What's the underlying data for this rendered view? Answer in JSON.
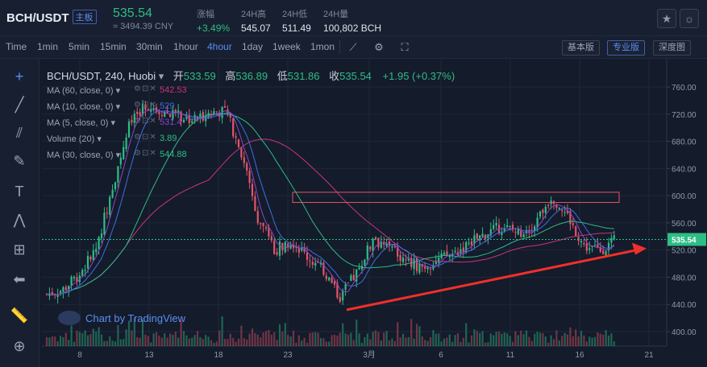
{
  "header": {
    "pair": "BCH/USDT",
    "board": "主板",
    "last_price": "535.54",
    "cny_price": "≈ 3494.39 CNY",
    "stats": [
      {
        "label": "涨幅",
        "value": "+3.49%",
        "up": true
      },
      {
        "label": "24H高",
        "value": "545.07",
        "up": false
      },
      {
        "label": "24H低",
        "value": "511.49",
        "up": false
      },
      {
        "label": "24H量",
        "value": "100,802 BCH",
        "up": false
      }
    ]
  },
  "toolbar": {
    "timeframes": [
      "Time",
      "1min",
      "5min",
      "15min",
      "30min",
      "1hour",
      "4hour",
      "1day",
      "1week",
      "1mon"
    ],
    "active_timeframe": "4hour",
    "modes": [
      "基本版",
      "专业版",
      "深度图"
    ],
    "active_mode": "专业版"
  },
  "legend": {
    "title": "BCH/USDT, 240, Huobi",
    "open_label": "开",
    "open": "533.59",
    "high_label": "高",
    "high": "536.89",
    "low_label": "低",
    "low": "531.86",
    "close_label": "收",
    "close": "535.54",
    "change": "+1.95 (+0.37%)"
  },
  "indicators": [
    {
      "label": "MA (60, close, 0)",
      "value": "542.53",
      "color": "#c9357d"
    },
    {
      "label": "MA (10, close, 0)",
      "value": "529",
      "color": "#3f6fe0"
    },
    {
      "label": "MA (5, close, 0)",
      "value": "531.4",
      "color": "#8e44c9"
    },
    {
      "label": "Volume (20)",
      "value": "3.89",
      "color": "#2ebd85"
    },
    {
      "label": "MA (30, close, 0)",
      "value": "544.88",
      "color": "#2ebd85"
    }
  ],
  "watermark": "Chart by TradingView",
  "colors": {
    "up": "#2ebd85",
    "down": "#e05767",
    "accent": "#5b8ef0",
    "background": "#141b2b"
  },
  "chart_data": {
    "type": "candlestick",
    "x_tick_labels": [
      "8",
      "13",
      "18",
      "23",
      "3月",
      "6",
      "11",
      "16",
      "21"
    ],
    "y_tick_labels": [
      "760.00",
      "720.00",
      "680.00",
      "640.00",
      "600.00",
      "560.00",
      "520.00",
      "480.00",
      "440.00",
      "400.00"
    ],
    "ylim": [
      390,
      775
    ],
    "current_price_label": "535.54",
    "price_path_anchors": [
      {
        "x": "8",
        "y": 455
      },
      {
        "x": "10",
        "y": 462
      },
      {
        "x": "12",
        "y": 485
      },
      {
        "x": "13",
        "y": 520
      },
      {
        "x": "14",
        "y": 610
      },
      {
        "x": "15",
        "y": 700
      },
      {
        "x": "16",
        "y": 735
      },
      {
        "x": "17",
        "y": 725
      },
      {
        "x": "18",
        "y": 718
      },
      {
        "x": "19",
        "y": 712
      },
      {
        "x": "20",
        "y": 722
      },
      {
        "x": "21",
        "y": 725
      },
      {
        "x": "22",
        "y": 660
      },
      {
        "x": "23",
        "y": 565
      },
      {
        "x": "24",
        "y": 520
      },
      {
        "x": "25",
        "y": 535
      },
      {
        "x": "26",
        "y": 510
      },
      {
        "x": "27",
        "y": 490
      },
      {
        "x": "3月",
        "y": 450
      },
      {
        "x": "2",
        "y": 485
      },
      {
        "x": "3",
        "y": 535
      },
      {
        "x": "4",
        "y": 525
      },
      {
        "x": "5",
        "y": 505
      },
      {
        "x": "6",
        "y": 495
      },
      {
        "x": "7",
        "y": 505
      },
      {
        "x": "8",
        "y": 515
      },
      {
        "x": "9",
        "y": 530
      },
      {
        "x": "10",
        "y": 545
      },
      {
        "x": "11",
        "y": 555
      },
      {
        "x": "12",
        "y": 545
      },
      {
        "x": "13",
        "y": 560
      },
      {
        "x": "14",
        "y": 600
      },
      {
        "x": "15",
        "y": 570
      },
      {
        "x": "16",
        "y": 525
      },
      {
        "x": "17",
        "y": 520
      },
      {
        "x": "18",
        "y": 535.54
      }
    ],
    "annotations": [
      {
        "type": "rectangle",
        "x_from": "23",
        "x_to": "18",
        "y_from": 590,
        "y_to": 605
      },
      {
        "type": "arrow",
        "from": {
          "x": "27",
          "y": 432
        },
        "to": {
          "x": "19",
          "y": 520
        }
      }
    ]
  }
}
